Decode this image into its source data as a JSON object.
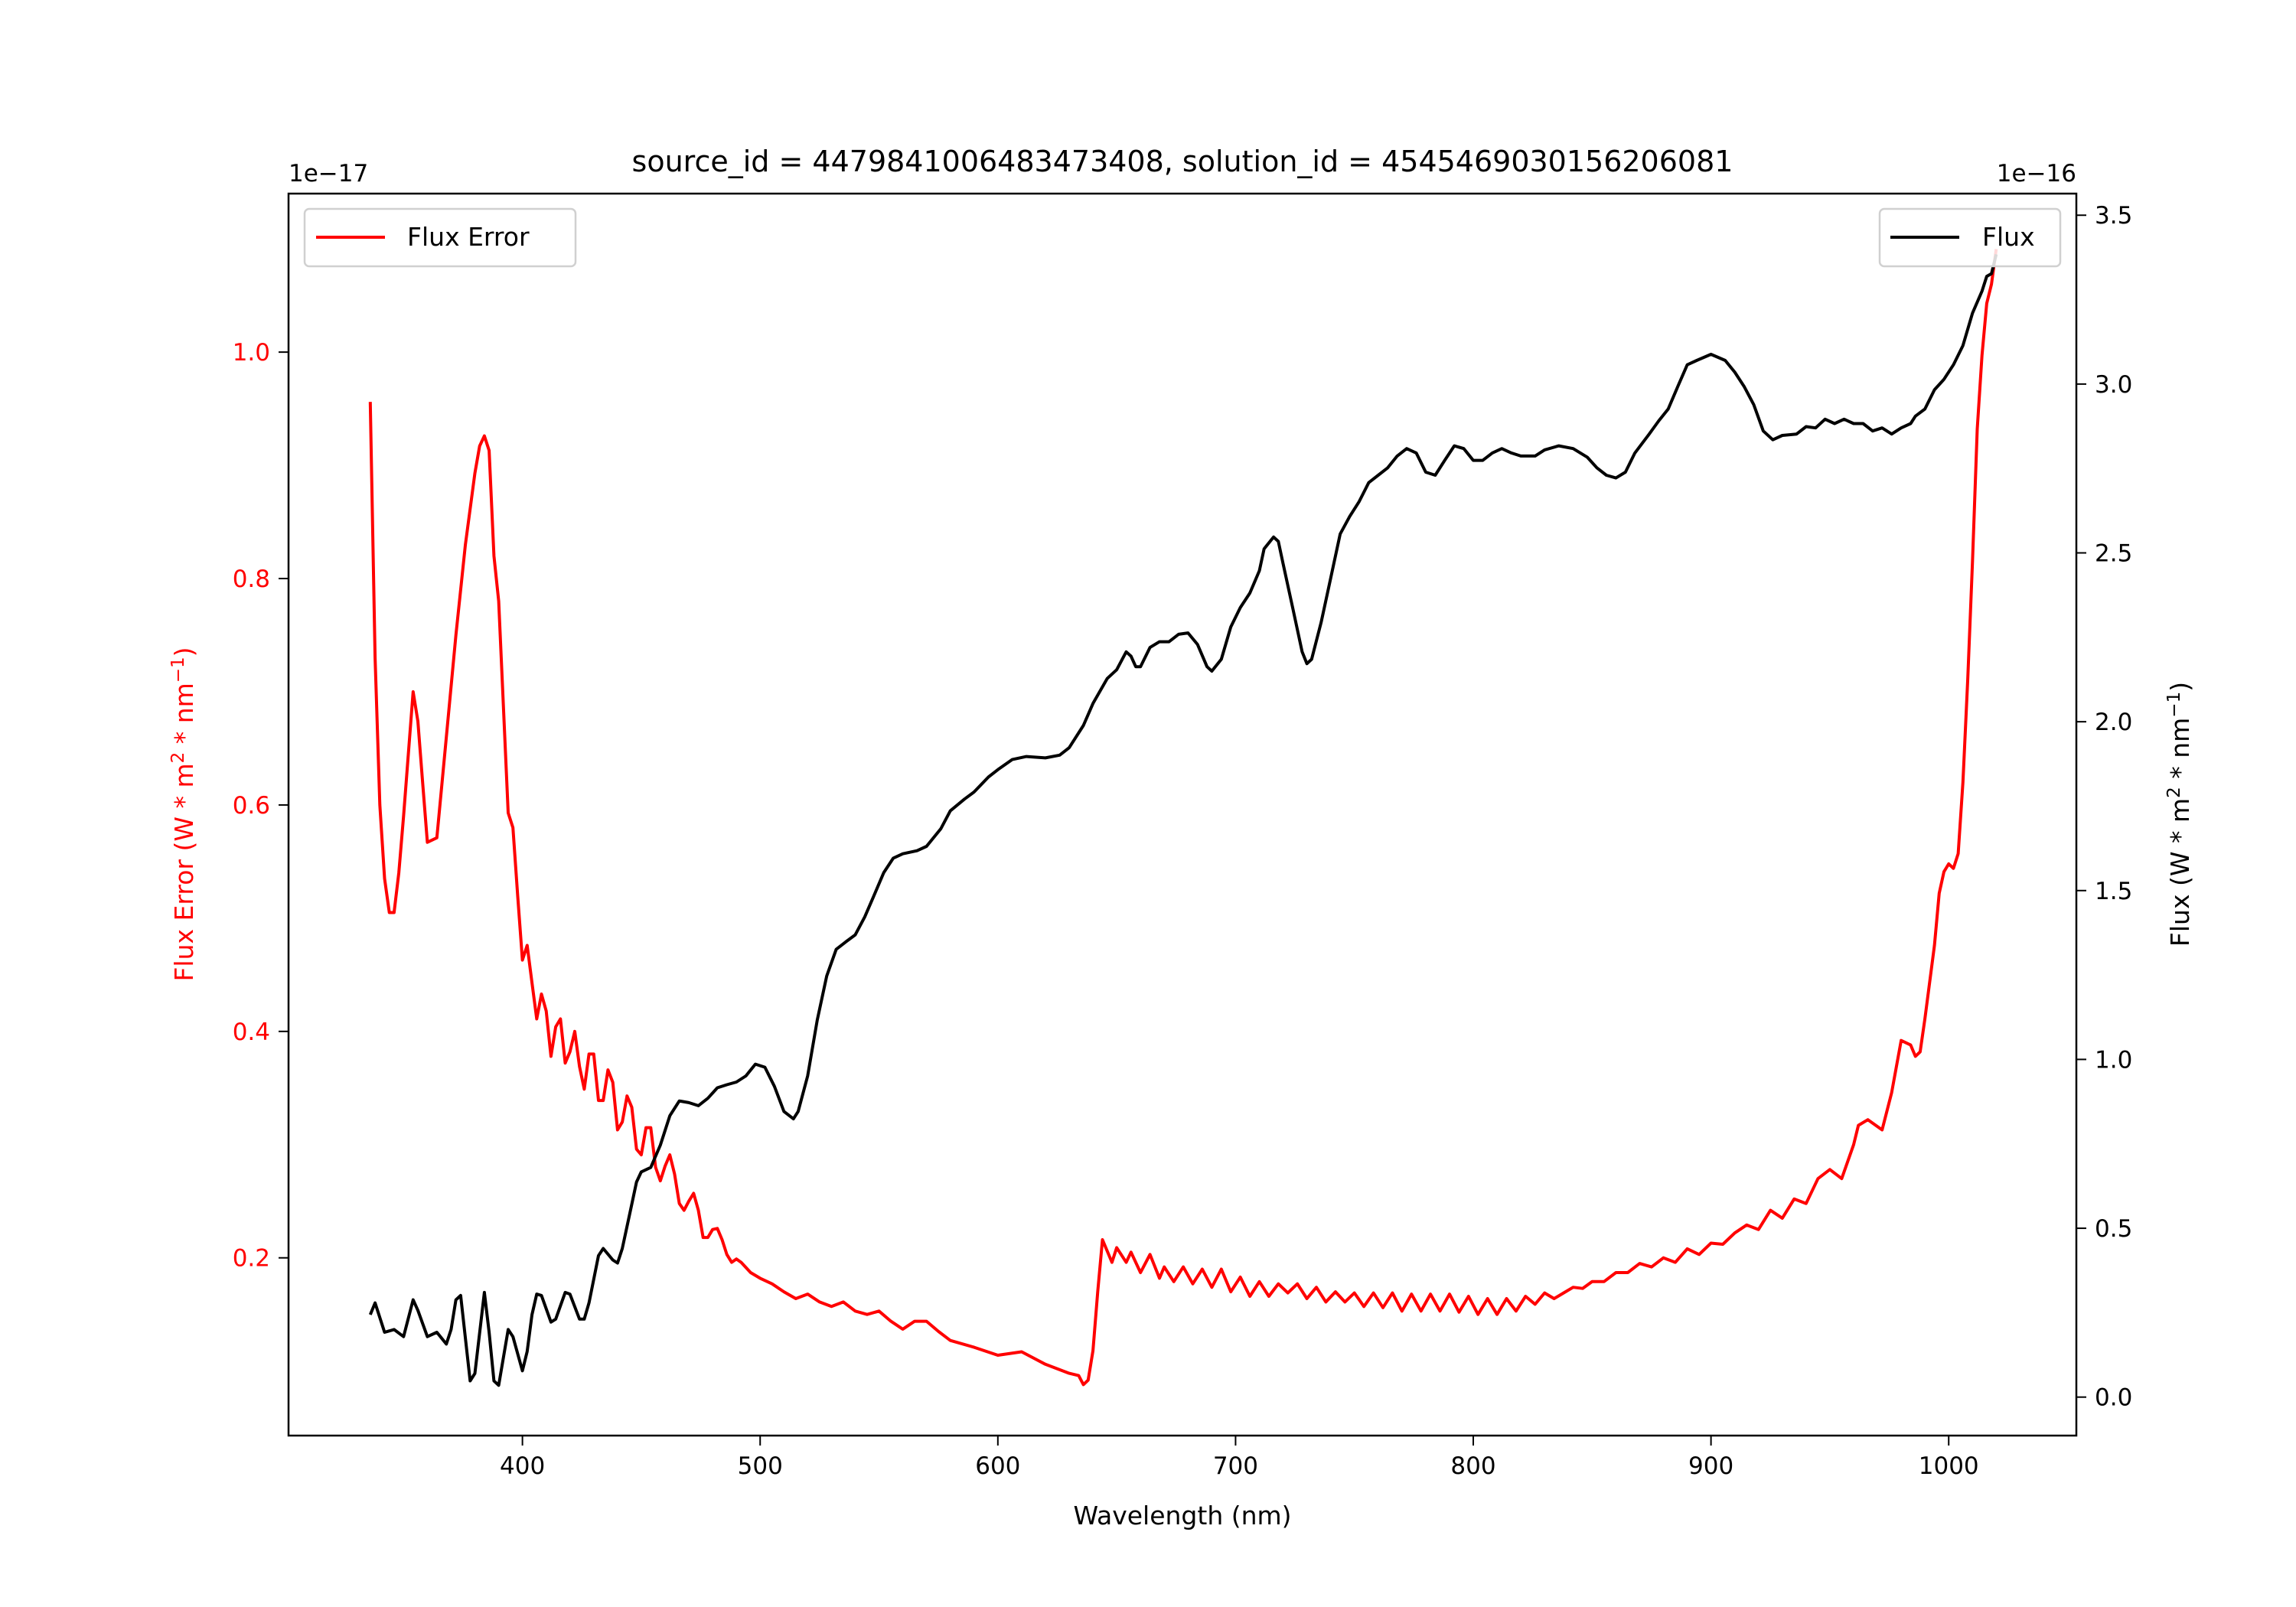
{
  "chart_data": {
    "type": "line",
    "title": "source_id = 4479841006483473408, solution_id = 4545469030156206081",
    "xlabel": "Wavelength (nm)",
    "xlim": [
      301.6,
      1053.7
    ],
    "xticks": [
      400,
      500,
      600,
      700,
      800,
      900,
      1000
    ],
    "left_axis": {
      "ylabel": "Flux Error (W * m$^2$ * nm$^{-1}$)",
      "ylabel_parts": [
        "Flux Error (W * m",
        "2",
        " * nm",
        "−1",
        ")"
      ],
      "offset_text": "1e−17",
      "ylim": [
        0.043,
        1.14
      ],
      "yticks": [
        0.2,
        0.4,
        0.6,
        0.8,
        1.0
      ],
      "ytick_labels": [
        "0.2",
        "0.4",
        "0.6",
        "0.8",
        "1.0"
      ],
      "color": "#ff0000"
    },
    "right_axis": {
      "ylabel_parts": [
        "Flux (W * m",
        "2",
        " * nm",
        "−1",
        ")"
      ],
      "offset_text": "1e−16",
      "ylim": [
        -0.114,
        3.564
      ],
      "yticks": [
        0.0,
        0.5,
        1.0,
        1.5,
        2.0,
        2.5,
        3.0,
        3.5
      ],
      "ytick_labels": [
        "0.0",
        "0.5",
        "1.0",
        "1.5",
        "2.0",
        "2.5",
        "3.0",
        "3.5"
      ],
      "color": "#000000"
    },
    "legend": [
      {
        "label": "Flux Error",
        "color": "#ff0000",
        "placement": "upper-left"
      },
      {
        "label": "Flux",
        "color": "#000000",
        "placement": "upper-right"
      }
    ],
    "series": [
      {
        "name": "Flux Error",
        "axis": "left",
        "color": "#ff0000",
        "x": [
          336,
          338,
          340,
          342,
          344,
          346,
          348,
          350,
          354,
          356,
          358,
          360,
          364,
          368,
          372,
          376,
          380,
          382,
          384,
          386,
          388,
          390,
          394,
          396,
          398,
          400,
          402,
          404,
          406,
          408,
          410,
          412,
          414,
          416,
          418,
          420,
          422,
          424,
          426,
          428,
          430,
          432,
          434,
          436,
          438,
          440,
          442,
          444,
          446,
          448,
          450,
          452,
          454,
          456,
          458,
          460,
          462,
          464,
          466,
          468,
          470,
          472,
          474,
          476,
          478,
          480,
          482,
          484,
          486,
          488,
          490,
          492,
          496,
          500,
          505,
          510,
          515,
          520,
          525,
          530,
          535,
          540,
          545,
          550,
          555,
          560,
          565,
          570,
          575,
          580,
          590,
          600,
          610,
          620,
          630,
          634,
          636,
          638,
          640,
          642,
          644,
          648,
          650,
          654,
          656,
          660,
          664,
          668,
          670,
          674,
          678,
          682,
          686,
          690,
          694,
          698,
          702,
          706,
          710,
          714,
          718,
          722,
          726,
          730,
          734,
          738,
          742,
          746,
          750,
          754,
          758,
          762,
          766,
          770,
          774,
          778,
          782,
          786,
          790,
          794,
          798,
          802,
          806,
          810,
          814,
          818,
          822,
          826,
          830,
          834,
          838,
          842,
          846,
          850,
          855,
          860,
          865,
          870,
          875,
          880,
          885,
          890,
          895,
          900,
          905,
          910,
          915,
          920,
          925,
          930,
          935,
          940,
          945,
          950,
          955,
          960,
          962,
          966,
          972,
          976,
          980,
          984,
          986,
          988,
          990,
          994,
          996,
          998,
          1000,
          1002,
          1004,
          1006,
          1008,
          1010,
          1012,
          1014,
          1016,
          1018,
          1020
        ],
        "y": [
          0.956,
          0.73,
          0.6,
          0.535,
          0.505,
          0.505,
          0.54,
          0.59,
          0.7,
          0.674,
          0.62,
          0.567,
          0.571,
          0.66,
          0.75,
          0.83,
          0.893,
          0.917,
          0.926,
          0.913,
          0.82,
          0.78,
          0.593,
          0.58,
          0.52,
          0.463,
          0.476,
          0.443,
          0.411,
          0.433,
          0.418,
          0.378,
          0.404,
          0.411,
          0.372,
          0.382,
          0.4,
          0.369,
          0.349,
          0.38,
          0.38,
          0.339,
          0.339,
          0.366,
          0.355,
          0.313,
          0.32,
          0.343,
          0.333,
          0.296,
          0.291,
          0.315,
          0.315,
          0.28,
          0.268,
          0.281,
          0.291,
          0.274,
          0.248,
          0.242,
          0.25,
          0.257,
          0.242,
          0.218,
          0.218,
          0.225,
          0.226,
          0.216,
          0.203,
          0.196,
          0.199,
          0.196,
          0.187,
          0.182,
          0.177,
          0.17,
          0.164,
          0.168,
          0.161,
          0.157,
          0.161,
          0.153,
          0.15,
          0.153,
          0.144,
          0.137,
          0.144,
          0.144,
          0.135,
          0.127,
          0.121,
          0.114,
          0.117,
          0.106,
          0.098,
          0.096,
          0.088,
          0.092,
          0.118,
          0.17,
          0.216,
          0.196,
          0.209,
          0.196,
          0.205,
          0.187,
          0.203,
          0.182,
          0.192,
          0.179,
          0.192,
          0.177,
          0.19,
          0.174,
          0.19,
          0.17,
          0.183,
          0.166,
          0.179,
          0.166,
          0.177,
          0.169,
          0.177,
          0.164,
          0.174,
          0.161,
          0.17,
          0.161,
          0.169,
          0.157,
          0.169,
          0.156,
          0.169,
          0.153,
          0.168,
          0.153,
          0.168,
          0.153,
          0.168,
          0.152,
          0.166,
          0.15,
          0.164,
          0.15,
          0.164,
          0.153,
          0.166,
          0.159,
          0.169,
          0.164,
          0.169,
          0.174,
          0.173,
          0.179,
          0.179,
          0.187,
          0.187,
          0.195,
          0.192,
          0.2,
          0.196,
          0.208,
          0.203,
          0.213,
          0.212,
          0.222,
          0.229,
          0.225,
          0.242,
          0.235,
          0.252,
          0.248,
          0.27,
          0.278,
          0.27,
          0.3,
          0.317,
          0.322,
          0.313,
          0.346,
          0.392,
          0.388,
          0.378,
          0.382,
          0.411,
          0.476,
          0.522,
          0.541,
          0.548,
          0.544,
          0.557,
          0.62,
          0.711,
          0.815,
          0.932,
          0.997,
          1.043,
          1.06,
          1.091
        ]
      },
      {
        "name": "Flux",
        "axis": "right",
        "color": "#000000",
        "x": [
          336,
          338,
          342,
          346,
          350,
          354,
          356,
          360,
          364,
          368,
          370,
          372,
          374,
          378,
          380,
          384,
          386,
          388,
          390,
          394,
          396,
          400,
          402,
          404,
          406,
          408,
          412,
          414,
          418,
          420,
          424,
          426,
          428,
          432,
          434,
          438,
          440,
          442,
          446,
          448,
          450,
          454,
          458,
          462,
          466,
          470,
          474,
          478,
          482,
          486,
          490,
          494,
          498,
          502,
          506,
          510,
          514,
          516,
          520,
          524,
          528,
          532,
          536,
          540,
          544,
          548,
          552,
          556,
          560,
          566,
          570,
          576,
          580,
          586,
          590,
          596,
          600,
          606,
          612,
          620,
          626,
          630,
          636,
          640,
          646,
          650,
          654,
          656,
          658,
          660,
          664,
          668,
          672,
          676,
          680,
          684,
          688,
          690,
          694,
          698,
          702,
          706,
          710,
          712,
          716,
          718,
          720,
          724,
          728,
          730,
          732,
          736,
          740,
          744,
          748,
          752,
          756,
          760,
          764,
          768,
          772,
          776,
          780,
          784,
          788,
          792,
          796,
          800,
          804,
          808,
          812,
          816,
          820,
          826,
          830,
          836,
          842,
          848,
          852,
          856,
          860,
          864,
          868,
          874,
          878,
          882,
          886,
          890,
          894,
          900,
          906,
          910,
          914,
          918,
          922,
          926,
          930,
          936,
          940,
          944,
          948,
          952,
          956,
          960,
          964,
          968,
          972,
          976,
          980,
          984,
          986,
          990,
          994,
          998,
          1002,
          1006,
          1010,
          1014,
          1016,
          1018,
          1020
        ],
        "y": [
          0.244,
          0.279,
          0.192,
          0.2,
          0.179,
          0.288,
          0.257,
          0.179,
          0.192,
          0.157,
          0.2,
          0.288,
          0.301,
          0.048,
          0.07,
          0.31,
          0.192,
          0.048,
          0.035,
          0.2,
          0.179,
          0.078,
          0.135,
          0.244,
          0.305,
          0.301,
          0.222,
          0.231,
          0.31,
          0.305,
          0.231,
          0.231,
          0.279,
          0.419,
          0.44,
          0.406,
          0.397,
          0.44,
          0.571,
          0.637,
          0.667,
          0.68,
          0.746,
          0.833,
          0.877,
          0.872,
          0.863,
          0.885,
          0.916,
          0.925,
          0.933,
          0.951,
          0.986,
          0.977,
          0.92,
          0.846,
          0.824,
          0.846,
          0.951,
          1.116,
          1.247,
          1.326,
          1.348,
          1.369,
          1.422,
          1.487,
          1.553,
          1.596,
          1.609,
          1.618,
          1.631,
          1.683,
          1.736,
          1.771,
          1.792,
          1.836,
          1.858,
          1.888,
          1.897,
          1.893,
          1.901,
          1.923,
          1.989,
          2.054,
          2.128,
          2.154,
          2.207,
          2.194,
          2.163,
          2.163,
          2.22,
          2.237,
          2.237,
          2.259,
          2.263,
          2.229,
          2.163,
          2.15,
          2.185,
          2.281,
          2.338,
          2.381,
          2.447,
          2.512,
          2.547,
          2.534,
          2.468,
          2.338,
          2.207,
          2.172,
          2.185,
          2.294,
          2.425,
          2.556,
          2.608,
          2.652,
          2.708,
          2.73,
          2.752,
          2.787,
          2.809,
          2.796,
          2.739,
          2.73,
          2.774,
          2.817,
          2.809,
          2.774,
          2.774,
          2.796,
          2.809,
          2.796,
          2.787,
          2.787,
          2.805,
          2.817,
          2.809,
          2.783,
          2.752,
          2.73,
          2.722,
          2.739,
          2.796,
          2.852,
          2.891,
          2.926,
          2.992,
          3.057,
          3.07,
          3.088,
          3.07,
          3.035,
          2.992,
          2.939,
          2.861,
          2.835,
          2.848,
          2.852,
          2.874,
          2.87,
          2.896,
          2.883,
          2.896,
          2.883,
          2.883,
          2.861,
          2.87,
          2.852,
          2.87,
          2.883,
          2.905,
          2.926,
          2.983,
          3.014,
          3.057,
          3.114,
          3.21,
          3.275,
          3.319,
          3.327,
          3.384
        ]
      }
    ]
  }
}
